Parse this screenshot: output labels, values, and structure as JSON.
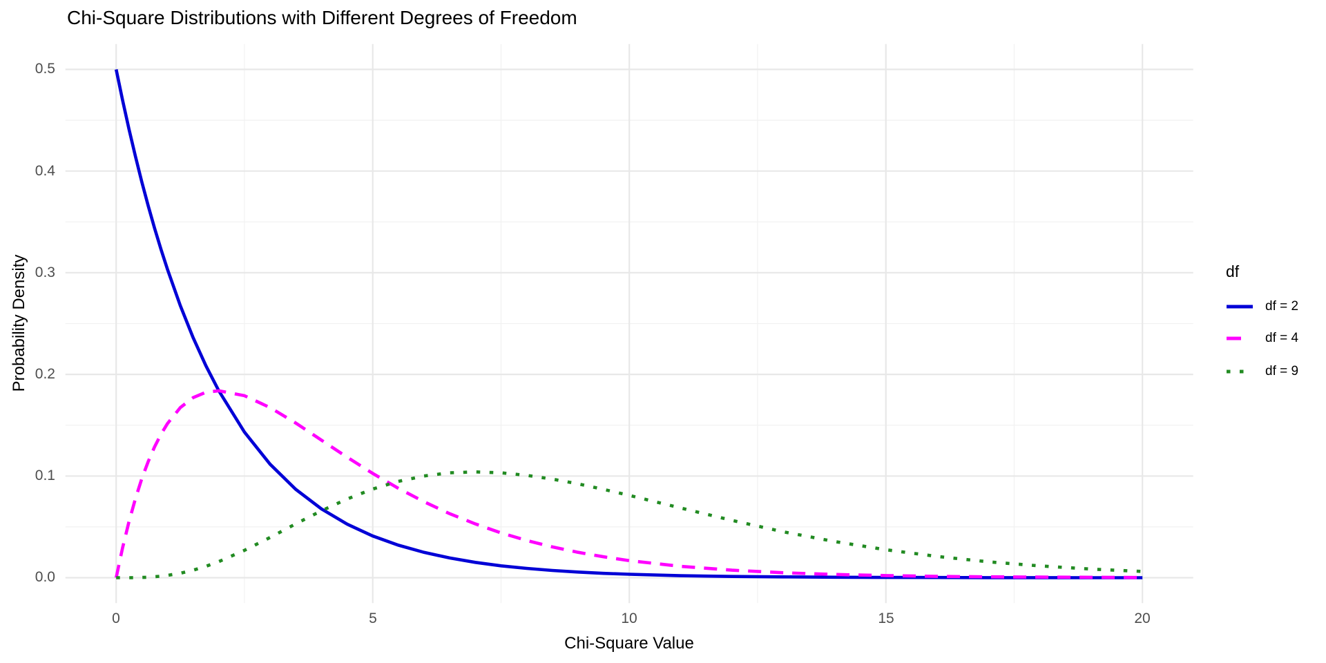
{
  "title": "Chi-Square Distributions with Different Degrees of Freedom",
  "axes": {
    "x": {
      "label": "Chi-Square Value",
      "ticks": [
        "0",
        "5",
        "10",
        "15",
        "20"
      ]
    },
    "y": {
      "label": "Probability Density",
      "ticks": [
        "0.0",
        "0.1",
        "0.2",
        "0.3",
        "0.4",
        "0.5"
      ]
    }
  },
  "legend": {
    "title": "df"
  },
  "colors": {
    "grid_major": "#e8e8e8",
    "grid_minor": "#f1f1f1",
    "tick_text": "#4d4d4d",
    "background": "#ffffff"
  },
  "chart_data": {
    "type": "line",
    "title": "Chi-Square Distributions with Different Degrees of Freedom",
    "xlabel": "Chi-Square Value",
    "ylabel": "Probability Density",
    "xlim": [
      0,
      20
    ],
    "ylim": [
      0,
      0.5
    ],
    "x_ticks": [
      0,
      5,
      10,
      15,
      20
    ],
    "y_ticks": [
      0,
      0.1,
      0.2,
      0.3,
      0.4,
      0.5
    ],
    "grid": "major and minor gridlines, light gray on white",
    "legend_position": "right",
    "legend_title": "df",
    "x": [
      0,
      0.125,
      0.25,
      0.375,
      0.5,
      0.625,
      0.75,
      0.875,
      1,
      1.25,
      1.5,
      1.75,
      2,
      2.5,
      3,
      3.5,
      4,
      4.5,
      5,
      5.5,
      6,
      6.5,
      7,
      7.5,
      8,
      8.5,
      9,
      9.5,
      10,
      11,
      12,
      13,
      14,
      15,
      16,
      17,
      18,
      19,
      20
    ],
    "series": [
      {
        "name": "df = 2",
        "df": 2,
        "color": "#0000d6",
        "linetype": "solid",
        "values": [
          0.5,
          0.4697,
          0.4412,
          0.4145,
          0.3894,
          0.3658,
          0.3436,
          0.3228,
          0.3033,
          0.2676,
          0.2362,
          0.2084,
          0.1839,
          0.1433,
          0.1116,
          0.0869,
          0.0677,
          0.0527,
          0.041,
          0.032,
          0.0249,
          0.0194,
          0.0151,
          0.0117,
          0.0092,
          0.0071,
          0.0056,
          0.0043,
          0.0034,
          0.002,
          0.0012,
          0.0008,
          0.0005,
          0.0003,
          0.0002,
          0.0001,
          0.0001,
          0.0,
          0.0
        ]
      },
      {
        "name": "df = 4",
        "df": 4,
        "color": "#ff00ff",
        "linetype": "dashed",
        "values": [
          0,
          0.0294,
          0.0552,
          0.0777,
          0.0974,
          0.1143,
          0.1289,
          0.1412,
          0.1516,
          0.1673,
          0.1771,
          0.1824,
          0.1839,
          0.1791,
          0.1673,
          0.1521,
          0.1353,
          0.1186,
          0.1026,
          0.0879,
          0.0747,
          0.063,
          0.0529,
          0.0441,
          0.0366,
          0.0303,
          0.025,
          0.0206,
          0.0168,
          0.0112,
          0.0074,
          0.0049,
          0.0032,
          0.0021,
          0.0013,
          0.0009,
          0.0006,
          0.0004,
          0.0002
        ]
      },
      {
        "name": "df = 9",
        "df": 9,
        "color": "#228b22",
        "linetype": "dotted",
        "values": [
          0,
          0.0,
          0.0,
          0.0001,
          0.0003,
          0.0005,
          0.001,
          0.0015,
          0.0023,
          0.0044,
          0.0074,
          0.0112,
          0.0158,
          0.0269,
          0.0396,
          0.053,
          0.0658,
          0.0774,
          0.0872,
          0.0948,
          0.1001,
          0.1032,
          0.1041,
          0.1032,
          0.1007,
          0.097,
          0.0923,
          0.0869,
          0.081,
          0.0686,
          0.0564,
          0.0452,
          0.0356,
          0.0275,
          0.0209,
          0.0156,
          0.0116,
          0.0085,
          0.0062
        ]
      }
    ]
  }
}
